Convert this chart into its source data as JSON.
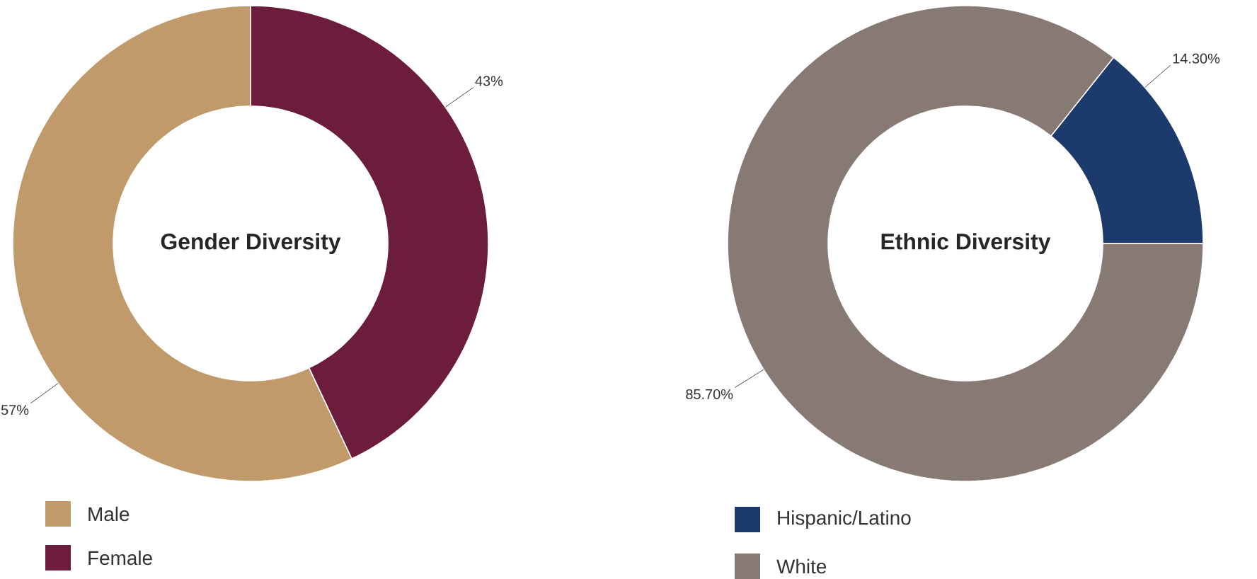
{
  "chart_data": [
    {
      "type": "donut",
      "title": "Gender Diversity",
      "categories": [
        "Male",
        "Female"
      ],
      "values": [
        57,
        43
      ],
      "colors": [
        "#c09a6b",
        "#6b1d3b"
      ],
      "value_labels": [
        "57%",
        "43%"
      ],
      "legend": "bottom left"
    },
    {
      "type": "donut",
      "title": "Ethnic Diversity",
      "categories": [
        "Hispanic/Latino",
        "White"
      ],
      "values": [
        14.3,
        85.7
      ],
      "colors": [
        "#1c3a6b",
        "#877a74"
      ],
      "value_labels": [
        "14.30%",
        "85.70%"
      ],
      "legend": "bottom left"
    }
  ]
}
